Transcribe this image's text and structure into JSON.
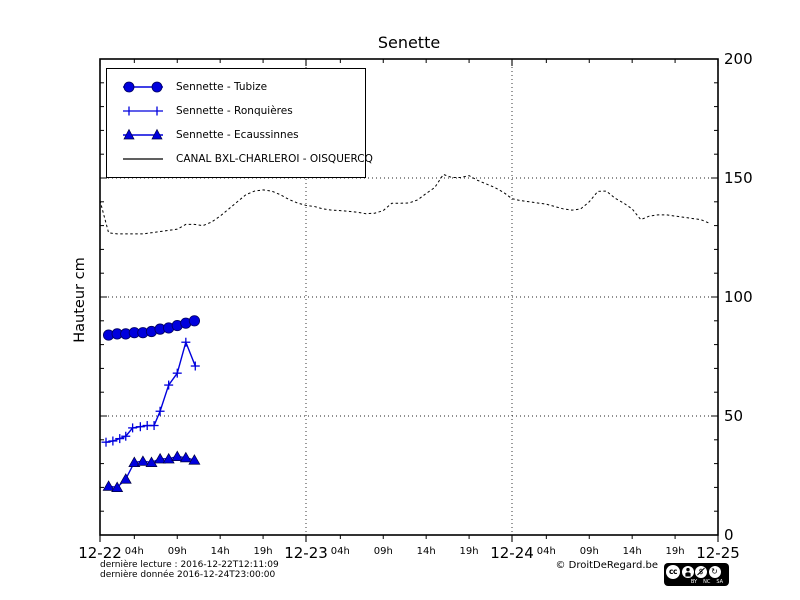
{
  "title": "Senette",
  "ylabel": "Hauteur cm",
  "footer": {
    "last_read": "dernière lecture : 2016-12-22T12:11:09",
    "last_data": "dernière donnée  2016-12-24T23:00:00",
    "copyright": "© DroitDeRegard.be"
  },
  "license": {
    "cc": "cc",
    "nc_glyph": "$",
    "sa_glyph": "↻",
    "labels": {
      "by": "BY",
      "nc": "NC",
      "sa": "SA"
    }
  },
  "chart_data": {
    "type": "line",
    "title": "Senette",
    "xlabel": "",
    "ylabel": "Hauteur cm",
    "ylim": [
      0,
      200
    ],
    "xlim_hours": [
      0,
      72
    ],
    "grid": {
      "h_values": [
        50,
        100,
        150
      ],
      "v_hours": [
        24,
        48
      ]
    },
    "yticks": [
      {
        "value": 0,
        "label": "0"
      },
      {
        "value": 50,
        "label": "50"
      },
      {
        "value": 100,
        "label": "100"
      },
      {
        "value": 150,
        "label": "150"
      },
      {
        "value": 200,
        "label": "200"
      }
    ],
    "y_minor_step": 10,
    "day_ticks": [
      {
        "hour": 0,
        "label": "12-22"
      },
      {
        "hour": 24,
        "label": "12-23"
      },
      {
        "hour": 48,
        "label": "12-24"
      },
      {
        "hour": 72,
        "label": "12-25"
      }
    ],
    "hour_ticks": [
      {
        "hour": 4,
        "label": "04h"
      },
      {
        "hour": 9,
        "label": "09h"
      },
      {
        "hour": 14,
        "label": "14h"
      },
      {
        "hour": 19,
        "label": "19h"
      },
      {
        "hour": 28,
        "label": "04h"
      },
      {
        "hour": 33,
        "label": "09h"
      },
      {
        "hour": 38,
        "label": "14h"
      },
      {
        "hour": 43,
        "label": "19h"
      },
      {
        "hour": 52,
        "label": "04h"
      },
      {
        "hour": 57,
        "label": "09h"
      },
      {
        "hour": 62,
        "label": "14h"
      },
      {
        "hour": 67,
        "label": "19h"
      }
    ],
    "legend_position": "upper left",
    "series": [
      {
        "name": "Sennette - Tubize",
        "marker": "circle",
        "color": "#0000dd",
        "hours": [
          1,
          2,
          3,
          4,
          5,
          6,
          7,
          8,
          9,
          10,
          11
        ],
        "values": [
          84,
          84.5,
          84.5,
          85,
          85,
          85.5,
          86.5,
          87,
          88,
          89,
          90
        ]
      },
      {
        "name": "Sennette - Ronquières",
        "marker": "plus",
        "color": "#0000dd",
        "hours": [
          0.7,
          1.5,
          2.3,
          3,
          3.8,
          4.7,
          5.5,
          6.3,
          7,
          8,
          9,
          10,
          11.1
        ],
        "values": [
          39,
          39.5,
          40.5,
          41.5,
          45,
          45.5,
          46,
          46,
          52,
          63,
          68,
          81,
          71
        ]
      },
      {
        "name": "Sennette - Ecaussinnes",
        "marker": "triangle",
        "color": "#0000dd",
        "hours": [
          1,
          2,
          3,
          4,
          5,
          6,
          7,
          8,
          9,
          10,
          11
        ],
        "values": [
          20.5,
          20,
          23.5,
          30.5,
          31,
          30.5,
          32,
          32,
          33,
          32.5,
          31.5
        ]
      },
      {
        "name": "CANAL BXL-CHARLEROI  - OISQUERCQ",
        "marker": "none",
        "color": "#000000",
        "dash": true,
        "hours": [
          0,
          1,
          2,
          3,
          4,
          5,
          6,
          7,
          8,
          9,
          10,
          11,
          12,
          13,
          14,
          15,
          16,
          17,
          18,
          19,
          20,
          21,
          22,
          23,
          24,
          25,
          26,
          27,
          28,
          29,
          30,
          31,
          32,
          33,
          34,
          35,
          36,
          37,
          38,
          39,
          40,
          41,
          42,
          43,
          44,
          45,
          46,
          47,
          48,
          49,
          50,
          51,
          52,
          53,
          54,
          55,
          56,
          57,
          58,
          59,
          60,
          61,
          62,
          63,
          64,
          65,
          66,
          67,
          68,
          69,
          70,
          71
        ],
        "values": [
          140.5,
          127,
          126.5,
          126.5,
          126.5,
          126.5,
          127,
          127.5,
          128,
          128.5,
          130.5,
          130.5,
          130,
          131.5,
          134,
          137,
          140,
          143,
          144.5,
          145,
          144.5,
          143,
          141,
          139.5,
          138.5,
          138,
          137,
          136.5,
          136.3,
          136,
          135.6,
          135,
          135.2,
          136.3,
          139.4,
          139.4,
          139.5,
          140.8,
          143.5,
          146,
          151.5,
          150.2,
          150.2,
          151,
          149,
          147.5,
          146,
          144,
          141.3,
          140.5,
          140,
          139.5,
          139,
          138,
          137,
          136.5,
          137,
          140,
          144.4,
          144.5,
          141.5,
          139.5,
          137,
          132.5,
          134,
          134.5,
          134.5,
          134,
          133.5,
          133,
          132.5,
          131
        ]
      }
    ]
  }
}
